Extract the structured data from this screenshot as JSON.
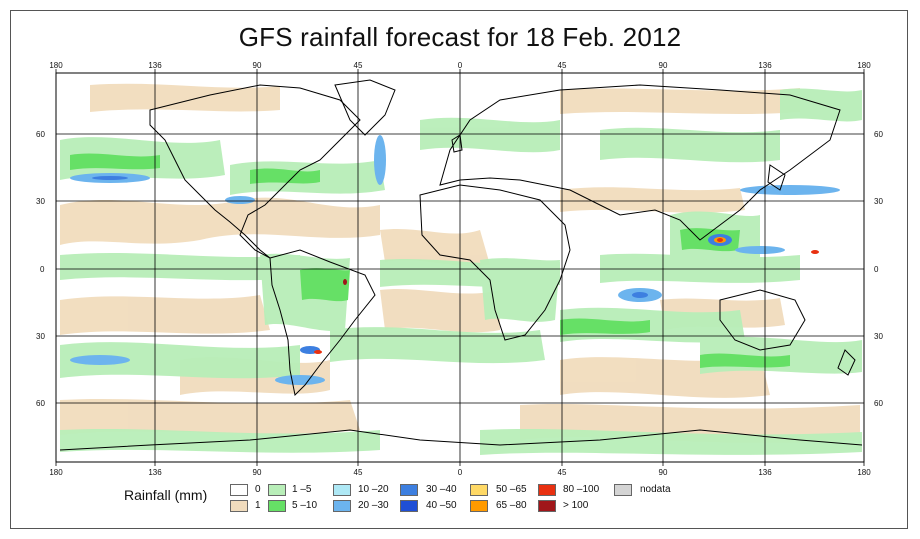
{
  "title": "GFS rainfall forecast for 18 Feb. 2012",
  "x_ticks": [
    "180",
    "136",
    "90",
    "45",
    "0",
    "45",
    "90",
    "136",
    "180"
  ],
  "y_ticks": [
    "60",
    "30",
    "0",
    "30",
    "60"
  ],
  "legend": {
    "title": "Rainfall (mm)",
    "items": [
      {
        "label": "0",
        "color": "#ffffff"
      },
      {
        "label": "1",
        "color": "#f1dcbd"
      },
      {
        "label": "1 –5",
        "color": "#b8eeb8"
      },
      {
        "label": "5 –10",
        "color": "#66e066"
      },
      {
        "label": "10 –20",
        "color": "#aee8f5"
      },
      {
        "label": "20 –30",
        "color": "#6cb4ee"
      },
      {
        "label": "30 –40",
        "color": "#3d7fe0"
      },
      {
        "label": "40 –50",
        "color": "#1f4fd6"
      },
      {
        "label": "50 –65",
        "color": "#ffd966"
      },
      {
        "label": "65 –80",
        "color": "#ff9a00"
      },
      {
        "label": "80 –100",
        "color": "#e83010"
      },
      {
        "label": "> 100",
        "color": "#a0161a"
      },
      {
        "label": "nodata",
        "color": "#d4d4d4"
      }
    ]
  }
}
